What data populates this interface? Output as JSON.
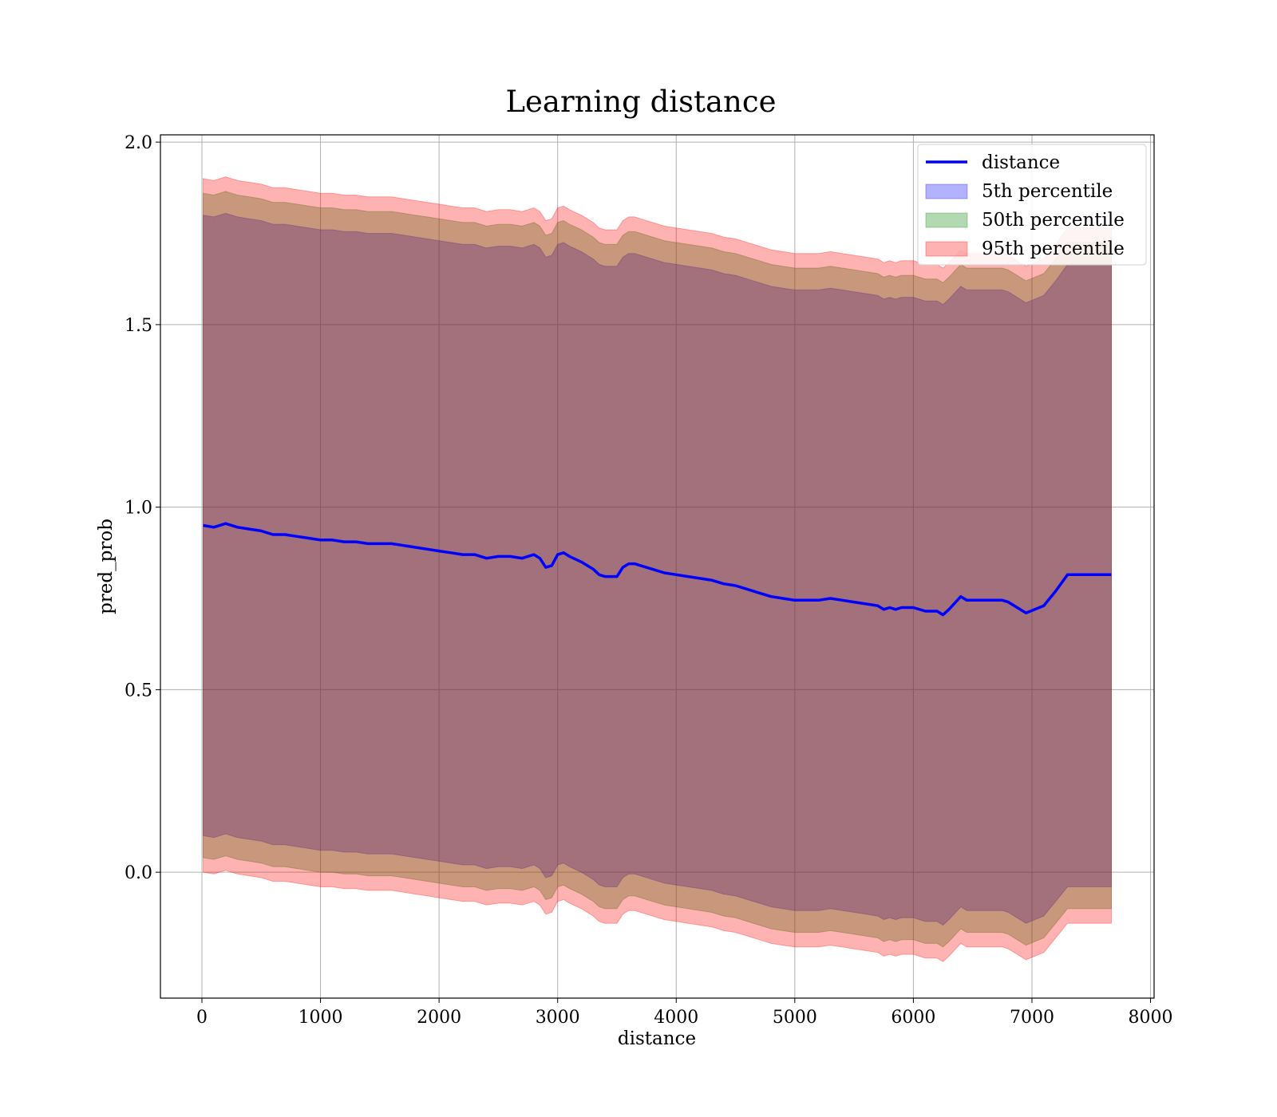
{
  "chart_data": {
    "type": "area",
    "title": "Learning distance",
    "xlabel": "distance",
    "ylabel": "pred_prob",
    "xlim": [
      -350,
      8030
    ],
    "ylim": [
      -0.345,
      2.02
    ],
    "xticks": [
      0,
      1000,
      2000,
      3000,
      4000,
      5000,
      6000,
      7000,
      8000
    ],
    "xtick_labels": [
      "0",
      "1000",
      "2000",
      "3000",
      "4000",
      "5000",
      "6000",
      "7000",
      "8000"
    ],
    "yticks": [
      0.0,
      0.5,
      1.0,
      1.5,
      2.0
    ],
    "ytick_labels": [
      "0.0",
      "0.5",
      "1.0",
      "1.5",
      "2.0"
    ],
    "grid": true,
    "legend_position": "top-right",
    "series": [
      {
        "name": "distance",
        "kind": "line",
        "color": "#0000ff",
        "x": [
          10,
          100,
          200,
          300,
          400,
          500,
          600,
          700,
          800,
          900,
          1000,
          1100,
          1200,
          1300,
          1400,
          1500,
          1600,
          1700,
          1800,
          1900,
          2000,
          2100,
          2200,
          2300,
          2400,
          2500,
          2600,
          2700,
          2800,
          2850,
          2900,
          2950,
          3000,
          3050,
          3100,
          3200,
          3300,
          3350,
          3400,
          3500,
          3550,
          3600,
          3650,
          3700,
          3800,
          3900,
          4000,
          4100,
          4200,
          4300,
          4400,
          4500,
          4600,
          4700,
          4800,
          4900,
          5000,
          5100,
          5200,
          5300,
          5400,
          5500,
          5600,
          5700,
          5750,
          5800,
          5850,
          5900,
          6000,
          6100,
          6200,
          6250,
          6300,
          6400,
          6450,
          6600,
          6750,
          6800,
          6950,
          7100,
          7200,
          7300,
          7500,
          7670
        ],
        "y": [
          0.95,
          0.945,
          0.955,
          0.945,
          0.94,
          0.935,
          0.925,
          0.925,
          0.92,
          0.915,
          0.91,
          0.91,
          0.905,
          0.905,
          0.9,
          0.9,
          0.9,
          0.895,
          0.89,
          0.885,
          0.88,
          0.875,
          0.87,
          0.87,
          0.86,
          0.865,
          0.865,
          0.86,
          0.87,
          0.86,
          0.835,
          0.84,
          0.87,
          0.875,
          0.865,
          0.85,
          0.83,
          0.815,
          0.81,
          0.81,
          0.835,
          0.845,
          0.845,
          0.84,
          0.83,
          0.82,
          0.815,
          0.81,
          0.805,
          0.8,
          0.79,
          0.785,
          0.775,
          0.765,
          0.755,
          0.75,
          0.745,
          0.745,
          0.745,
          0.75,
          0.745,
          0.74,
          0.735,
          0.73,
          0.72,
          0.725,
          0.72,
          0.725,
          0.725,
          0.715,
          0.715,
          0.705,
          0.72,
          0.755,
          0.745,
          0.745,
          0.745,
          0.74,
          0.71,
          0.73,
          0.77,
          0.815,
          0.815,
          0.815
        ]
      },
      {
        "name": "5th percentile",
        "kind": "band",
        "color": "#0000ff",
        "x": [
          10,
          100,
          200,
          300,
          400,
          500,
          600,
          700,
          800,
          900,
          1000,
          1100,
          1200,
          1300,
          1400,
          1500,
          1600,
          1700,
          1800,
          1900,
          2000,
          2100,
          2200,
          2300,
          2400,
          2500,
          2600,
          2700,
          2800,
          2850,
          2900,
          2950,
          3000,
          3050,
          3100,
          3200,
          3300,
          3350,
          3400,
          3500,
          3550,
          3600,
          3650,
          3700,
          3800,
          3900,
          4000,
          4100,
          4200,
          4300,
          4400,
          4500,
          4600,
          4700,
          4800,
          4900,
          5000,
          5100,
          5200,
          5300,
          5400,
          5500,
          5600,
          5700,
          5750,
          5800,
          5850,
          5900,
          6000,
          6100,
          6200,
          6250,
          6300,
          6400,
          6450,
          6600,
          6750,
          6800,
          6950,
          7100,
          7200,
          7300,
          7500,
          7670
        ],
        "y_low": [
          0.1,
          0.095,
          0.105,
          0.095,
          0.09,
          0.085,
          0.075,
          0.075,
          0.07,
          0.065,
          0.06,
          0.06,
          0.055,
          0.055,
          0.05,
          0.05,
          0.05,
          0.045,
          0.04,
          0.035,
          0.03,
          0.025,
          0.02,
          0.02,
          0.01,
          0.015,
          0.015,
          0.01,
          0.02,
          0.01,
          -0.015,
          -0.01,
          0.02,
          0.025,
          0.015,
          0.0,
          -0.02,
          -0.035,
          -0.04,
          -0.04,
          -0.015,
          -0.005,
          -0.005,
          -0.01,
          -0.02,
          -0.03,
          -0.035,
          -0.04,
          -0.045,
          -0.05,
          -0.06,
          -0.065,
          -0.075,
          -0.085,
          -0.095,
          -0.1,
          -0.105,
          -0.105,
          -0.105,
          -0.1,
          -0.105,
          -0.11,
          -0.115,
          -0.12,
          -0.13,
          -0.125,
          -0.13,
          -0.125,
          -0.125,
          -0.135,
          -0.135,
          -0.145,
          -0.13,
          -0.095,
          -0.105,
          -0.105,
          -0.105,
          -0.11,
          -0.14,
          -0.12,
          -0.08,
          -0.04,
          -0.04,
          -0.04
        ],
        "y_high": [
          1.8,
          1.795,
          1.805,
          1.795,
          1.79,
          1.785,
          1.775,
          1.775,
          1.77,
          1.765,
          1.76,
          1.76,
          1.755,
          1.755,
          1.75,
          1.75,
          1.75,
          1.745,
          1.74,
          1.735,
          1.73,
          1.725,
          1.72,
          1.72,
          1.71,
          1.715,
          1.715,
          1.71,
          1.72,
          1.71,
          1.685,
          1.69,
          1.72,
          1.725,
          1.715,
          1.7,
          1.68,
          1.665,
          1.66,
          1.66,
          1.685,
          1.695,
          1.695,
          1.69,
          1.68,
          1.67,
          1.665,
          1.66,
          1.655,
          1.65,
          1.64,
          1.635,
          1.625,
          1.615,
          1.605,
          1.6,
          1.595,
          1.595,
          1.595,
          1.6,
          1.595,
          1.59,
          1.585,
          1.58,
          1.57,
          1.575,
          1.57,
          1.575,
          1.575,
          1.565,
          1.565,
          1.555,
          1.57,
          1.605,
          1.595,
          1.595,
          1.595,
          1.59,
          1.56,
          1.58,
          1.62,
          1.665,
          1.665,
          1.665
        ]
      },
      {
        "name": "50th percentile",
        "kind": "band",
        "color": "#008000",
        "x": [
          10,
          100,
          200,
          300,
          400,
          500,
          600,
          700,
          800,
          900,
          1000,
          1100,
          1200,
          1300,
          1400,
          1500,
          1600,
          1700,
          1800,
          1900,
          2000,
          2100,
          2200,
          2300,
          2400,
          2500,
          2600,
          2700,
          2800,
          2850,
          2900,
          2950,
          3000,
          3050,
          3100,
          3200,
          3300,
          3350,
          3400,
          3500,
          3550,
          3600,
          3650,
          3700,
          3800,
          3900,
          4000,
          4100,
          4200,
          4300,
          4400,
          4500,
          4600,
          4700,
          4800,
          4900,
          5000,
          5100,
          5200,
          5300,
          5400,
          5500,
          5600,
          5700,
          5750,
          5800,
          5850,
          5900,
          6000,
          6100,
          6200,
          6250,
          6300,
          6400,
          6450,
          6600,
          6750,
          6800,
          6950,
          7100,
          7200,
          7300,
          7500,
          7670
        ],
        "y_low": [
          0.04,
          0.035,
          0.045,
          0.035,
          0.03,
          0.025,
          0.015,
          0.015,
          0.01,
          0.005,
          0.0,
          0.0,
          -0.005,
          -0.005,
          -0.01,
          -0.01,
          -0.01,
          -0.015,
          -0.02,
          -0.025,
          -0.03,
          -0.035,
          -0.04,
          -0.04,
          -0.05,
          -0.045,
          -0.045,
          -0.05,
          -0.04,
          -0.05,
          -0.075,
          -0.07,
          -0.04,
          -0.035,
          -0.045,
          -0.06,
          -0.08,
          -0.095,
          -0.1,
          -0.1,
          -0.075,
          -0.065,
          -0.065,
          -0.07,
          -0.08,
          -0.09,
          -0.095,
          -0.1,
          -0.105,
          -0.11,
          -0.12,
          -0.125,
          -0.135,
          -0.145,
          -0.155,
          -0.16,
          -0.165,
          -0.165,
          -0.165,
          -0.16,
          -0.165,
          -0.17,
          -0.175,
          -0.18,
          -0.19,
          -0.185,
          -0.19,
          -0.185,
          -0.185,
          -0.195,
          -0.195,
          -0.205,
          -0.19,
          -0.155,
          -0.165,
          -0.165,
          -0.165,
          -0.17,
          -0.2,
          -0.18,
          -0.14,
          -0.1,
          -0.1,
          -0.1
        ],
        "y_high": [
          1.86,
          1.855,
          1.865,
          1.855,
          1.85,
          1.845,
          1.835,
          1.835,
          1.83,
          1.825,
          1.82,
          1.82,
          1.815,
          1.815,
          1.81,
          1.81,
          1.81,
          1.805,
          1.8,
          1.795,
          1.79,
          1.785,
          1.78,
          1.78,
          1.77,
          1.775,
          1.775,
          1.77,
          1.78,
          1.77,
          1.745,
          1.75,
          1.78,
          1.785,
          1.775,
          1.76,
          1.74,
          1.725,
          1.72,
          1.72,
          1.745,
          1.755,
          1.755,
          1.75,
          1.74,
          1.73,
          1.725,
          1.72,
          1.715,
          1.71,
          1.7,
          1.695,
          1.685,
          1.675,
          1.665,
          1.66,
          1.655,
          1.655,
          1.655,
          1.66,
          1.655,
          1.65,
          1.645,
          1.64,
          1.63,
          1.635,
          1.63,
          1.635,
          1.635,
          1.625,
          1.625,
          1.615,
          1.63,
          1.665,
          1.655,
          1.655,
          1.655,
          1.65,
          1.62,
          1.64,
          1.68,
          1.725,
          1.725,
          1.725
        ]
      },
      {
        "name": "95th percentile",
        "kind": "band",
        "color": "#ff0000",
        "x": [
          10,
          100,
          200,
          300,
          400,
          500,
          600,
          700,
          800,
          900,
          1000,
          1100,
          1200,
          1300,
          1400,
          1500,
          1600,
          1700,
          1800,
          1900,
          2000,
          2100,
          2200,
          2300,
          2400,
          2500,
          2600,
          2700,
          2800,
          2850,
          2900,
          2950,
          3000,
          3050,
          3100,
          3200,
          3300,
          3350,
          3400,
          3500,
          3550,
          3600,
          3650,
          3700,
          3800,
          3900,
          4000,
          4100,
          4200,
          4300,
          4400,
          4500,
          4600,
          4700,
          4800,
          4900,
          5000,
          5100,
          5200,
          5300,
          5400,
          5500,
          5600,
          5700,
          5750,
          5800,
          5850,
          5900,
          6000,
          6100,
          6200,
          6250,
          6300,
          6400,
          6450,
          6600,
          6750,
          6800,
          6950,
          7100,
          7200,
          7300,
          7500,
          7670
        ],
        "y_low": [
          0.0,
          -0.005,
          0.005,
          -0.005,
          -0.01,
          -0.015,
          -0.025,
          -0.025,
          -0.03,
          -0.035,
          -0.04,
          -0.04,
          -0.045,
          -0.045,
          -0.05,
          -0.05,
          -0.05,
          -0.055,
          -0.06,
          -0.065,
          -0.07,
          -0.075,
          -0.08,
          -0.08,
          -0.09,
          -0.085,
          -0.085,
          -0.09,
          -0.08,
          -0.09,
          -0.115,
          -0.11,
          -0.08,
          -0.075,
          -0.085,
          -0.1,
          -0.12,
          -0.135,
          -0.14,
          -0.14,
          -0.115,
          -0.105,
          -0.105,
          -0.11,
          -0.12,
          -0.13,
          -0.135,
          -0.14,
          -0.145,
          -0.15,
          -0.16,
          -0.165,
          -0.175,
          -0.185,
          -0.195,
          -0.2,
          -0.205,
          -0.205,
          -0.205,
          -0.2,
          -0.205,
          -0.21,
          -0.215,
          -0.22,
          -0.23,
          -0.225,
          -0.23,
          -0.225,
          -0.225,
          -0.235,
          -0.235,
          -0.245,
          -0.23,
          -0.195,
          -0.205,
          -0.205,
          -0.205,
          -0.21,
          -0.24,
          -0.22,
          -0.18,
          -0.14,
          -0.14,
          -0.14
        ],
        "y_high": [
          1.9,
          1.895,
          1.905,
          1.895,
          1.89,
          1.885,
          1.875,
          1.875,
          1.87,
          1.865,
          1.86,
          1.86,
          1.855,
          1.855,
          1.85,
          1.85,
          1.85,
          1.845,
          1.84,
          1.835,
          1.83,
          1.825,
          1.82,
          1.82,
          1.81,
          1.815,
          1.815,
          1.81,
          1.82,
          1.81,
          1.785,
          1.79,
          1.82,
          1.825,
          1.815,
          1.8,
          1.78,
          1.765,
          1.76,
          1.76,
          1.785,
          1.795,
          1.795,
          1.79,
          1.78,
          1.77,
          1.765,
          1.76,
          1.755,
          1.75,
          1.74,
          1.735,
          1.725,
          1.715,
          1.705,
          1.7,
          1.695,
          1.695,
          1.695,
          1.7,
          1.695,
          1.69,
          1.685,
          1.68,
          1.67,
          1.675,
          1.67,
          1.675,
          1.675,
          1.665,
          1.665,
          1.655,
          1.67,
          1.705,
          1.695,
          1.695,
          1.695,
          1.69,
          1.66,
          1.68,
          1.72,
          1.765,
          1.765,
          1.765
        ]
      }
    ]
  }
}
